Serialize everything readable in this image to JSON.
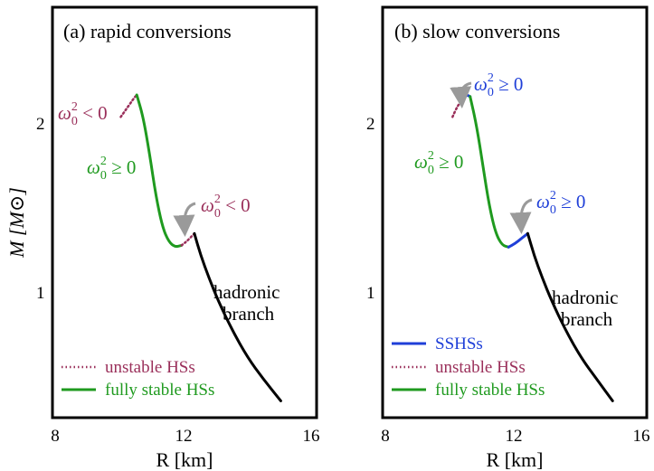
{
  "colors": {
    "green": "#1f9a1f",
    "purple": "#9a2f5a",
    "blue": "#1f3fd8",
    "black": "#000000",
    "gray": "#9a9a9a"
  },
  "chart_data": [
    {
      "type": "line",
      "panel_title": "(a) rapid conversions",
      "xlabel": "R [km]",
      "ylabel": "M [M⊙]",
      "xlim": [
        8,
        16
      ],
      "ylim": [
        0.3,
        2.5
      ],
      "xticks": [
        "8",
        "12",
        "16"
      ],
      "yticks": [
        "1",
        "2"
      ],
      "series": [
        {
          "name": "unstable HSs",
          "style": "dotted",
          "color": "purple",
          "x": [
            10.05,
            10.2,
            10.35,
            10.48,
            10.55
          ],
          "y": [
            2.02,
            2.06,
            2.1,
            2.135,
            2.15
          ]
        },
        {
          "name": "fully stable HSs",
          "style": "solid",
          "color": "green",
          "x": [
            10.55,
            10.75,
            10.95,
            11.15,
            11.35,
            11.55,
            11.75,
            11.95
          ],
          "y": [
            2.15,
            2.02,
            1.8,
            1.55,
            1.37,
            1.28,
            1.25,
            1.26
          ]
        },
        {
          "name": "unstable HSs (second)",
          "style": "dotted",
          "color": "purple",
          "x": [
            11.95,
            12.15,
            12.35
          ],
          "y": [
            1.26,
            1.29,
            1.33
          ]
        },
        {
          "name": "hadronic branch",
          "style": "solid",
          "color": "black",
          "x": [
            12.35,
            12.55,
            12.8,
            13.1,
            13.5,
            14.0,
            14.5,
            15.05
          ],
          "y": [
            1.33,
            1.2,
            1.07,
            0.93,
            0.77,
            0.6,
            0.47,
            0.34
          ]
        }
      ],
      "annotations": [
        {
          "text": "ω",
          "sup": "2",
          "sub": "0",
          "rel": " < 0",
          "color": "purple"
        },
        {
          "text": "ω",
          "sup": "2",
          "sub": "0",
          "rel": " ≥ 0",
          "color": "green"
        },
        {
          "text": "ω",
          "sup": "2",
          "sub": "0",
          "rel": " < 0",
          "color": "purple"
        }
      ],
      "branch_label": [
        "hadronic",
        "branch"
      ],
      "legend": [
        {
          "label": "unstable HSs",
          "style": "dotted",
          "color": "purple"
        },
        {
          "label": "fully stable HSs",
          "style": "solid",
          "color": "green"
        }
      ]
    },
    {
      "type": "line",
      "panel_title": "(b) slow conversions",
      "xlabel": "R [km]",
      "xlim": [
        8,
        16
      ],
      "ylim": [
        0.3,
        2.5
      ],
      "xticks": [
        "8",
        "12",
        "16"
      ],
      "yticks": [
        "1",
        "2"
      ],
      "series": [
        {
          "name": "unstable HSs",
          "style": "dotted",
          "color": "purple",
          "x": [
            10.1,
            10.22,
            10.35
          ],
          "y": [
            2.02,
            2.07,
            2.11
          ]
        },
        {
          "name": "SSHSs",
          "style": "solid",
          "color": "blue",
          "x": [
            10.35,
            10.45,
            10.55,
            10.65
          ],
          "y": [
            2.11,
            2.14,
            2.15,
            2.14
          ]
        },
        {
          "name": "fully stable HSs",
          "style": "solid",
          "color": "green",
          "x": [
            10.65,
            10.85,
            11.05,
            11.25,
            11.45,
            11.65,
            11.85
          ],
          "y": [
            2.14,
            1.97,
            1.73,
            1.49,
            1.33,
            1.26,
            1.25
          ]
        },
        {
          "name": "SSHSs (second)",
          "style": "solid",
          "color": "blue",
          "x": [
            11.85,
            12.05,
            12.25,
            12.45
          ],
          "y": [
            1.25,
            1.27,
            1.3,
            1.33
          ]
        },
        {
          "name": "hadronic branch",
          "style": "solid",
          "color": "black",
          "x": [
            12.45,
            12.65,
            12.9,
            13.2,
            13.6,
            14.1,
            14.6,
            15.1
          ],
          "y": [
            1.33,
            1.2,
            1.07,
            0.93,
            0.77,
            0.6,
            0.47,
            0.34
          ]
        }
      ],
      "annotations": [
        {
          "text": "ω",
          "sup": "2",
          "sub": "0",
          "rel": " ≥ 0",
          "color": "blue"
        },
        {
          "text": "ω",
          "sup": "2",
          "sub": "0",
          "rel": " ≥ 0",
          "color": "green"
        },
        {
          "text": "ω",
          "sup": "2",
          "sub": "0",
          "rel": " ≥ 0",
          "color": "blue"
        }
      ],
      "branch_label": [
        "hadronic",
        "branch"
      ],
      "legend": [
        {
          "label": "SSHSs",
          "style": "solid",
          "color": "blue"
        },
        {
          "label": "unstable HSs",
          "style": "dotted",
          "color": "purple"
        },
        {
          "label": "fully stable HSs",
          "style": "solid",
          "color": "green"
        }
      ]
    }
  ]
}
